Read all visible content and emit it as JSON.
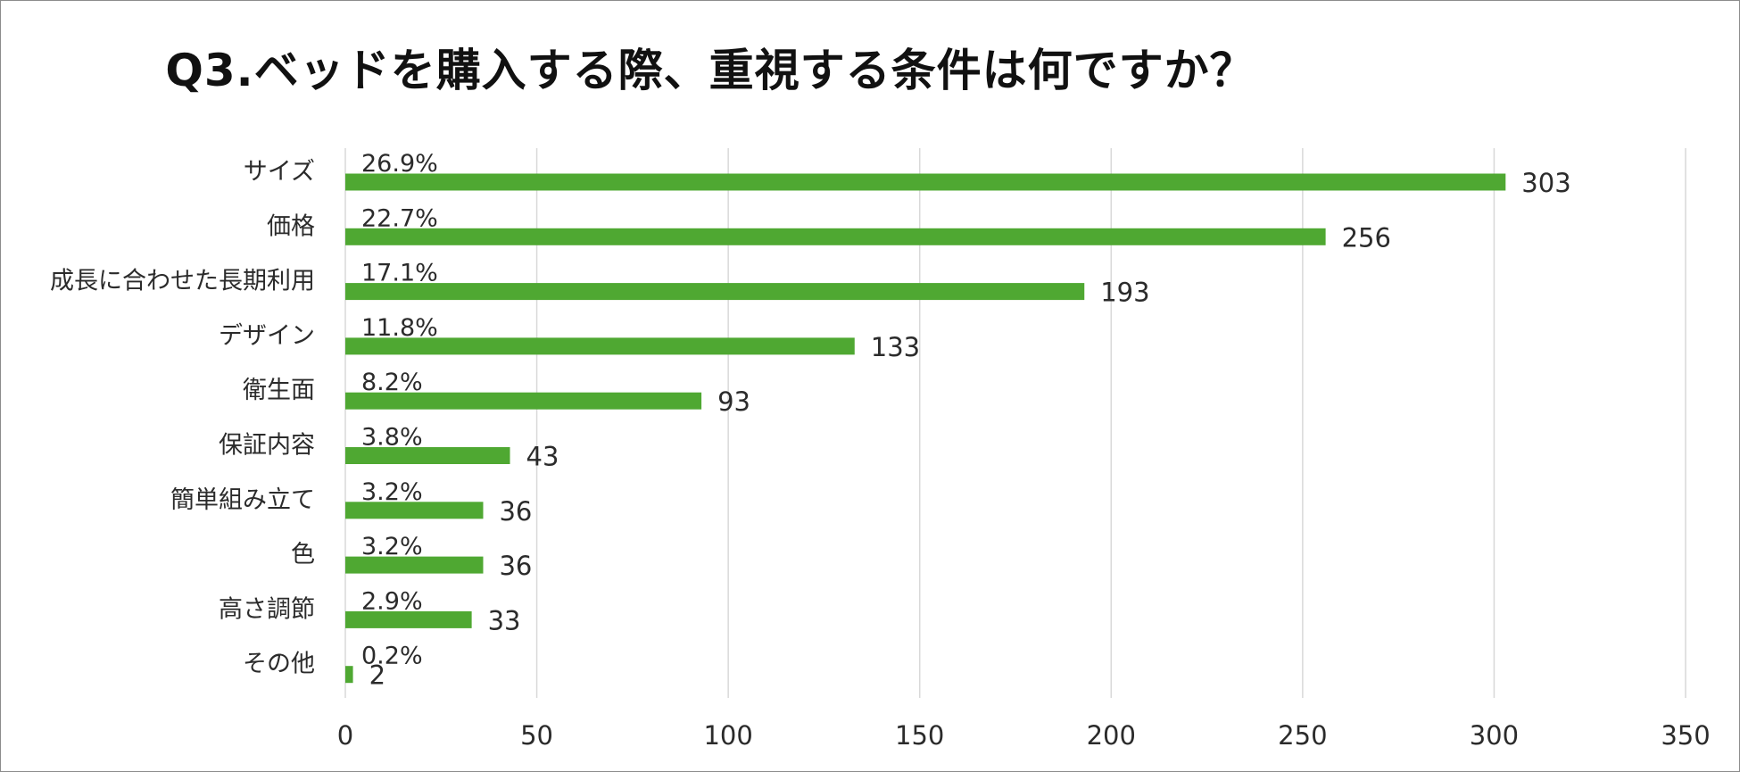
{
  "chart_data": {
    "type": "bar",
    "orientation": "horizontal",
    "title": "Q3.ベッドを購入する際、重視する条件は何ですか？",
    "categories": [
      "サイズ",
      "価格",
      "成長に合わせた長期利用",
      "デザイン",
      "衛生面",
      "保証内容",
      "簡単組み立て",
      "色",
      "高さ調節",
      "その他"
    ],
    "values": [
      303,
      256,
      193,
      133,
      93,
      43,
      36,
      36,
      33,
      2
    ],
    "percent_labels": [
      "26.9%",
      "22.7%",
      "17.1%",
      "11.8%",
      "8.2%",
      "3.8%",
      "3.2%",
      "3.2%",
      "2.9%",
      "0.2%"
    ],
    "xlim": [
      0,
      350
    ],
    "x_ticks": [
      0,
      50,
      100,
      150,
      200,
      250,
      300,
      350
    ],
    "grid": true,
    "legend": "none",
    "bar_color": "#4fa832",
    "grid_color": "#d9d9d9"
  }
}
